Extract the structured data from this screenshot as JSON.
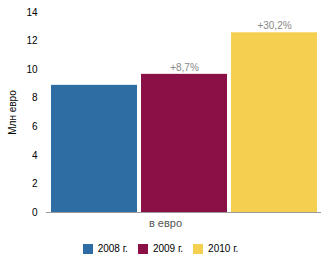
{
  "chart_data": {
    "type": "bar",
    "categories": [
      "2008 г.",
      "2009 г.",
      "2010 г."
    ],
    "values": [
      8.9,
      9.67,
      12.58
    ],
    "colors": [
      "#2e6da4",
      "#8b1045",
      "#f5d050"
    ],
    "annotations": [
      null,
      "+8,7%",
      "+30,2%"
    ],
    "xlabel": "в евро",
    "ylabel": "Млн евро",
    "ylim": [
      0,
      14
    ],
    "yticks": [
      0,
      2,
      4,
      6,
      8,
      10,
      12,
      14
    ],
    "tick_labels": "y",
    "legend": "bottom"
  }
}
